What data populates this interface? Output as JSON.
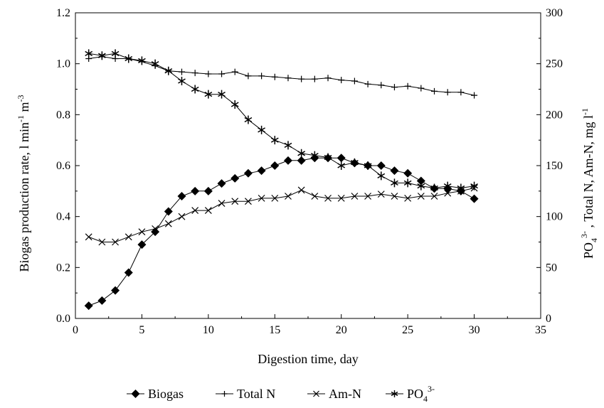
{
  "chart_data": {
    "type": "line",
    "xlabel": "Digestion time, day",
    "xlim": [
      0,
      35
    ],
    "xticks": [
      0,
      5,
      10,
      15,
      20,
      25,
      30,
      35
    ],
    "ylabel_left": "Biogas production rate, l min",
    "ylabel_left_parts": [
      "Biogas production rate, l min",
      "-1",
      " m",
      "-3"
    ],
    "ylim_left": [
      0.0,
      1.2
    ],
    "yticks_left": [
      "0.0",
      "0.2",
      "0.4",
      "0.6",
      "0.8",
      "1.0",
      "1.2"
    ],
    "ylabel_right_parts": [
      "PO",
      "4",
      "3-",
      " ,  Total N, Am-N, mg l",
      "-1"
    ],
    "ylim_right": [
      0,
      300
    ],
    "yticks_right": [
      "0",
      "50",
      "100",
      "150",
      "200",
      "250",
      "300"
    ],
    "grid": false,
    "legend_position": "bottom",
    "legend": {
      "biogas": "Biogas",
      "total_n": "Total N",
      "am_n": "Am-N",
      "po4_base": "PO",
      "po4_sub": "4",
      "po4_sup": "3-"
    },
    "x": [
      1,
      2,
      3,
      4,
      5,
      6,
      7,
      8,
      9,
      10,
      11,
      12,
      13,
      14,
      15,
      16,
      17,
      18,
      19,
      20,
      21,
      22,
      23,
      24,
      25,
      26,
      27,
      28,
      29,
      30
    ],
    "series": [
      {
        "key": "biogas",
        "axis": "left",
        "marker": "diamond",
        "values": [
          0.05,
          0.07,
          0.11,
          0.18,
          0.29,
          0.34,
          0.42,
          0.48,
          0.5,
          0.5,
          0.53,
          0.55,
          0.57,
          0.58,
          0.6,
          0.62,
          0.62,
          0.63,
          0.63,
          0.63,
          0.61,
          0.6,
          0.6,
          0.58,
          0.57,
          0.54,
          0.51,
          0.51,
          0.5,
          0.47
        ]
      },
      {
        "key": "total_n",
        "axis": "right",
        "marker": "plus",
        "values": [
          255,
          257,
          255,
          255,
          252,
          248,
          243,
          242,
          241,
          240,
          240,
          242,
          238,
          238,
          237,
          236,
          235,
          235,
          236,
          234,
          233,
          230,
          229,
          227,
          228,
          226,
          223,
          222,
          222,
          219
        ]
      },
      {
        "key": "am_n",
        "axis": "right",
        "marker": "cross",
        "values": [
          80,
          75,
          75,
          80,
          85,
          88,
          93,
          100,
          106,
          106,
          113,
          115,
          115,
          118,
          118,
          120,
          126,
          120,
          118,
          118,
          120,
          120,
          122,
          120,
          118,
          120,
          120,
          123,
          125,
          128
        ]
      },
      {
        "key": "po4",
        "axis": "right",
        "marker": "asterisk",
        "values": [
          260,
          258,
          260,
          255,
          253,
          250,
          243,
          233,
          225,
          220,
          220,
          210,
          195,
          185,
          175,
          170,
          162,
          160,
          158,
          150,
          153,
          150,
          140,
          133,
          133,
          130,
          128,
          130,
          128,
          130
        ]
      }
    ]
  }
}
